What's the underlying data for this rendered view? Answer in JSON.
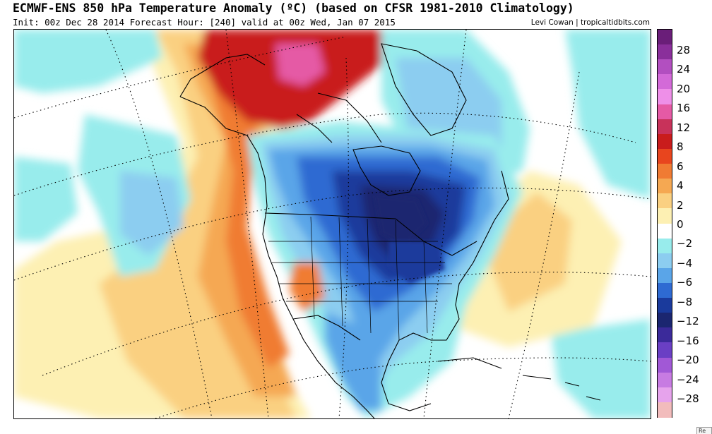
{
  "header": {
    "title": "ECMWF-ENS 850 hPa Temperature Anomaly (ºC) (based on CFSR 1981-2010 Climatology)",
    "subtitle": "Init: 00z Dec 28 2014   Forecast Hour: [240]   valid at 00z Wed, Jan 07 2015",
    "credit": "Levi Cowan | tropicaltidbits.com"
  },
  "colorbar": {
    "labels": [
      "28",
      "24",
      "20",
      "16",
      "12",
      "8",
      "6",
      "4",
      "2",
      "0",
      "−2",
      "−4",
      "−6",
      "−8",
      "−12",
      "−16",
      "−20",
      "−24",
      "−28"
    ],
    "colors": [
      "#6a1e79",
      "#8a2f9b",
      "#b24fc0",
      "#d36ad8",
      "#ee8fe8",
      "#e55aa5",
      "#c8325a",
      "#c91c1c",
      "#e8451e",
      "#f07b33",
      "#f5a852",
      "#fad081",
      "#fdf0b3",
      "#ffffff",
      "#98ecec",
      "#8ccdf0",
      "#5aa5e8",
      "#2e6ad2",
      "#1a3a9c",
      "#1b2670",
      "#3b2a9a",
      "#6a3fc4",
      "#a158d6",
      "#c77be2",
      "#e6a3ec",
      "#f2bcbc"
    ]
  },
  "map": {
    "anomaly_colors": {
      "warm_strong": "#c91c1c",
      "warm_peak": "#e55aa5",
      "warm_mod": "#f07b33",
      "warm_light": "#f5a852",
      "warm_faint": "#fad081",
      "warm_trace": "#fdf0b3",
      "neutral": "#ffffff",
      "cold_faint": "#98ecec",
      "cold_light": "#8ccdf0",
      "cold_mod": "#5aa5e8",
      "cold_strong": "#2e6ad2",
      "cold_deep": "#1a3a9c",
      "cold_core": "#1b2670"
    }
  },
  "footer": {
    "corner_tab": "Re"
  }
}
